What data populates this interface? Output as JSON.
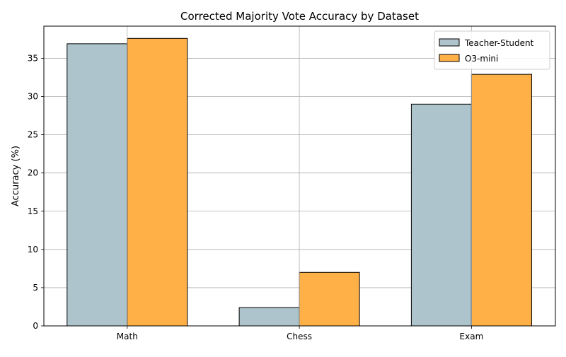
{
  "chart_data": {
    "type": "bar",
    "title": "Corrected Majority Vote Accuracy by Dataset",
    "xlabel": "",
    "ylabel": "Accuracy (%)",
    "categories": [
      "Math",
      "Chess",
      "Exam"
    ],
    "series": [
      {
        "name": "Teacher-Student",
        "values": [
          36.9,
          2.4,
          29.0
        ],
        "color": "#aec4cc"
      },
      {
        "name": "O3-mini",
        "values": [
          37.6,
          7.0,
          32.9
        ],
        "color": "#ffb047"
      }
    ],
    "ylim": [
      0,
      39.2
    ],
    "yticks": [
      0,
      5,
      10,
      15,
      20,
      25,
      30,
      35
    ],
    "grid": true,
    "legend_position": "top-right"
  }
}
